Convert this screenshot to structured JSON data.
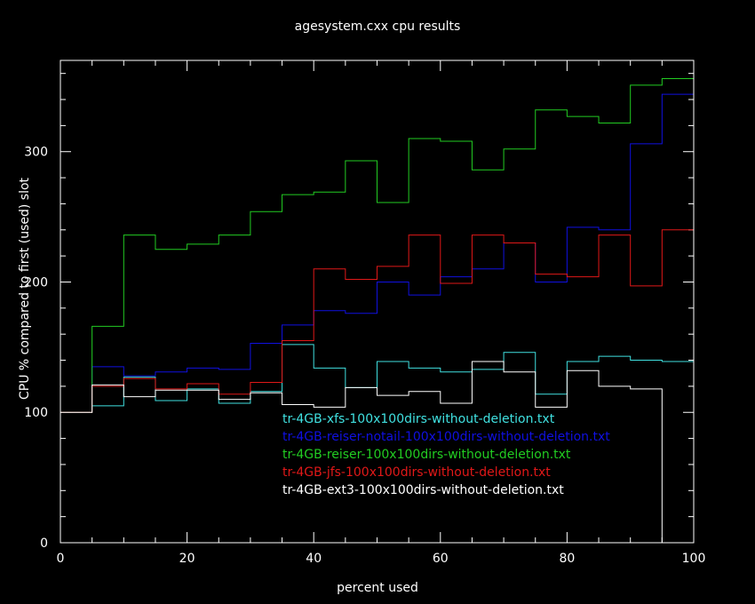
{
  "chart_data": {
    "type": "line",
    "step": true,
    "title": "agesystem.cxx cpu results",
    "xlabel": "percent used",
    "ylabel": "CPU % compared to first (used) slot",
    "xlim": [
      0,
      100
    ],
    "ylim": [
      0,
      370
    ],
    "xticks": [
      0,
      20,
      40,
      60,
      80,
      100
    ],
    "yticks": [
      0,
      100,
      200,
      300
    ],
    "grid": false,
    "legend_position": "center",
    "bin_edges": [
      0,
      5,
      10,
      15,
      20,
      25,
      30,
      35,
      40,
      45,
      50,
      55,
      60,
      65,
      70,
      75,
      80,
      85,
      90,
      95,
      100
    ],
    "series": [
      {
        "name": "tr-4GB-xfs-100x100dirs-without-deletion.txt",
        "color": "#40e0e0",
        "values": [
          100,
          105,
          127,
          109,
          118,
          107,
          116,
          152,
          134,
          119,
          139,
          134,
          131,
          133,
          146,
          114,
          139,
          143,
          140,
          139
        ]
      },
      {
        "name": "tr-4GB-reiser-notail-100x100dirs-without-deletion.txt",
        "color": "#1010e0",
        "values": [
          100,
          135,
          128,
          131,
          134,
          133,
          153,
          167,
          178,
          176,
          200,
          190,
          204,
          210,
          230,
          200,
          242,
          240,
          306,
          344
        ]
      },
      {
        "name": "tr-4GB-reiser-100x100dirs-without-deletion.txt",
        "color": "#22cc22",
        "values": [
          100,
          166,
          236,
          225,
          229,
          236,
          254,
          267,
          269,
          293,
          261,
          310,
          308,
          286,
          302,
          332,
          327,
          322,
          351,
          356
        ]
      },
      {
        "name": "tr-4GB-jfs-100x100dirs-without-deletion.txt",
        "color": "#e01818",
        "values": [
          100,
          120,
          126,
          118,
          122,
          114,
          123,
          155,
          210,
          202,
          212,
          236,
          199,
          236,
          230,
          206,
          204,
          236,
          197,
          240
        ]
      },
      {
        "name": "tr-4GB-ext3-100x100dirs-without-deletion.txt",
        "color": "#ffffff",
        "values": [
          100,
          121,
          112,
          117,
          117,
          110,
          115,
          106,
          104,
          119,
          113,
          116,
          107,
          139,
          131,
          104,
          132,
          120,
          118,
          0
        ]
      }
    ]
  }
}
